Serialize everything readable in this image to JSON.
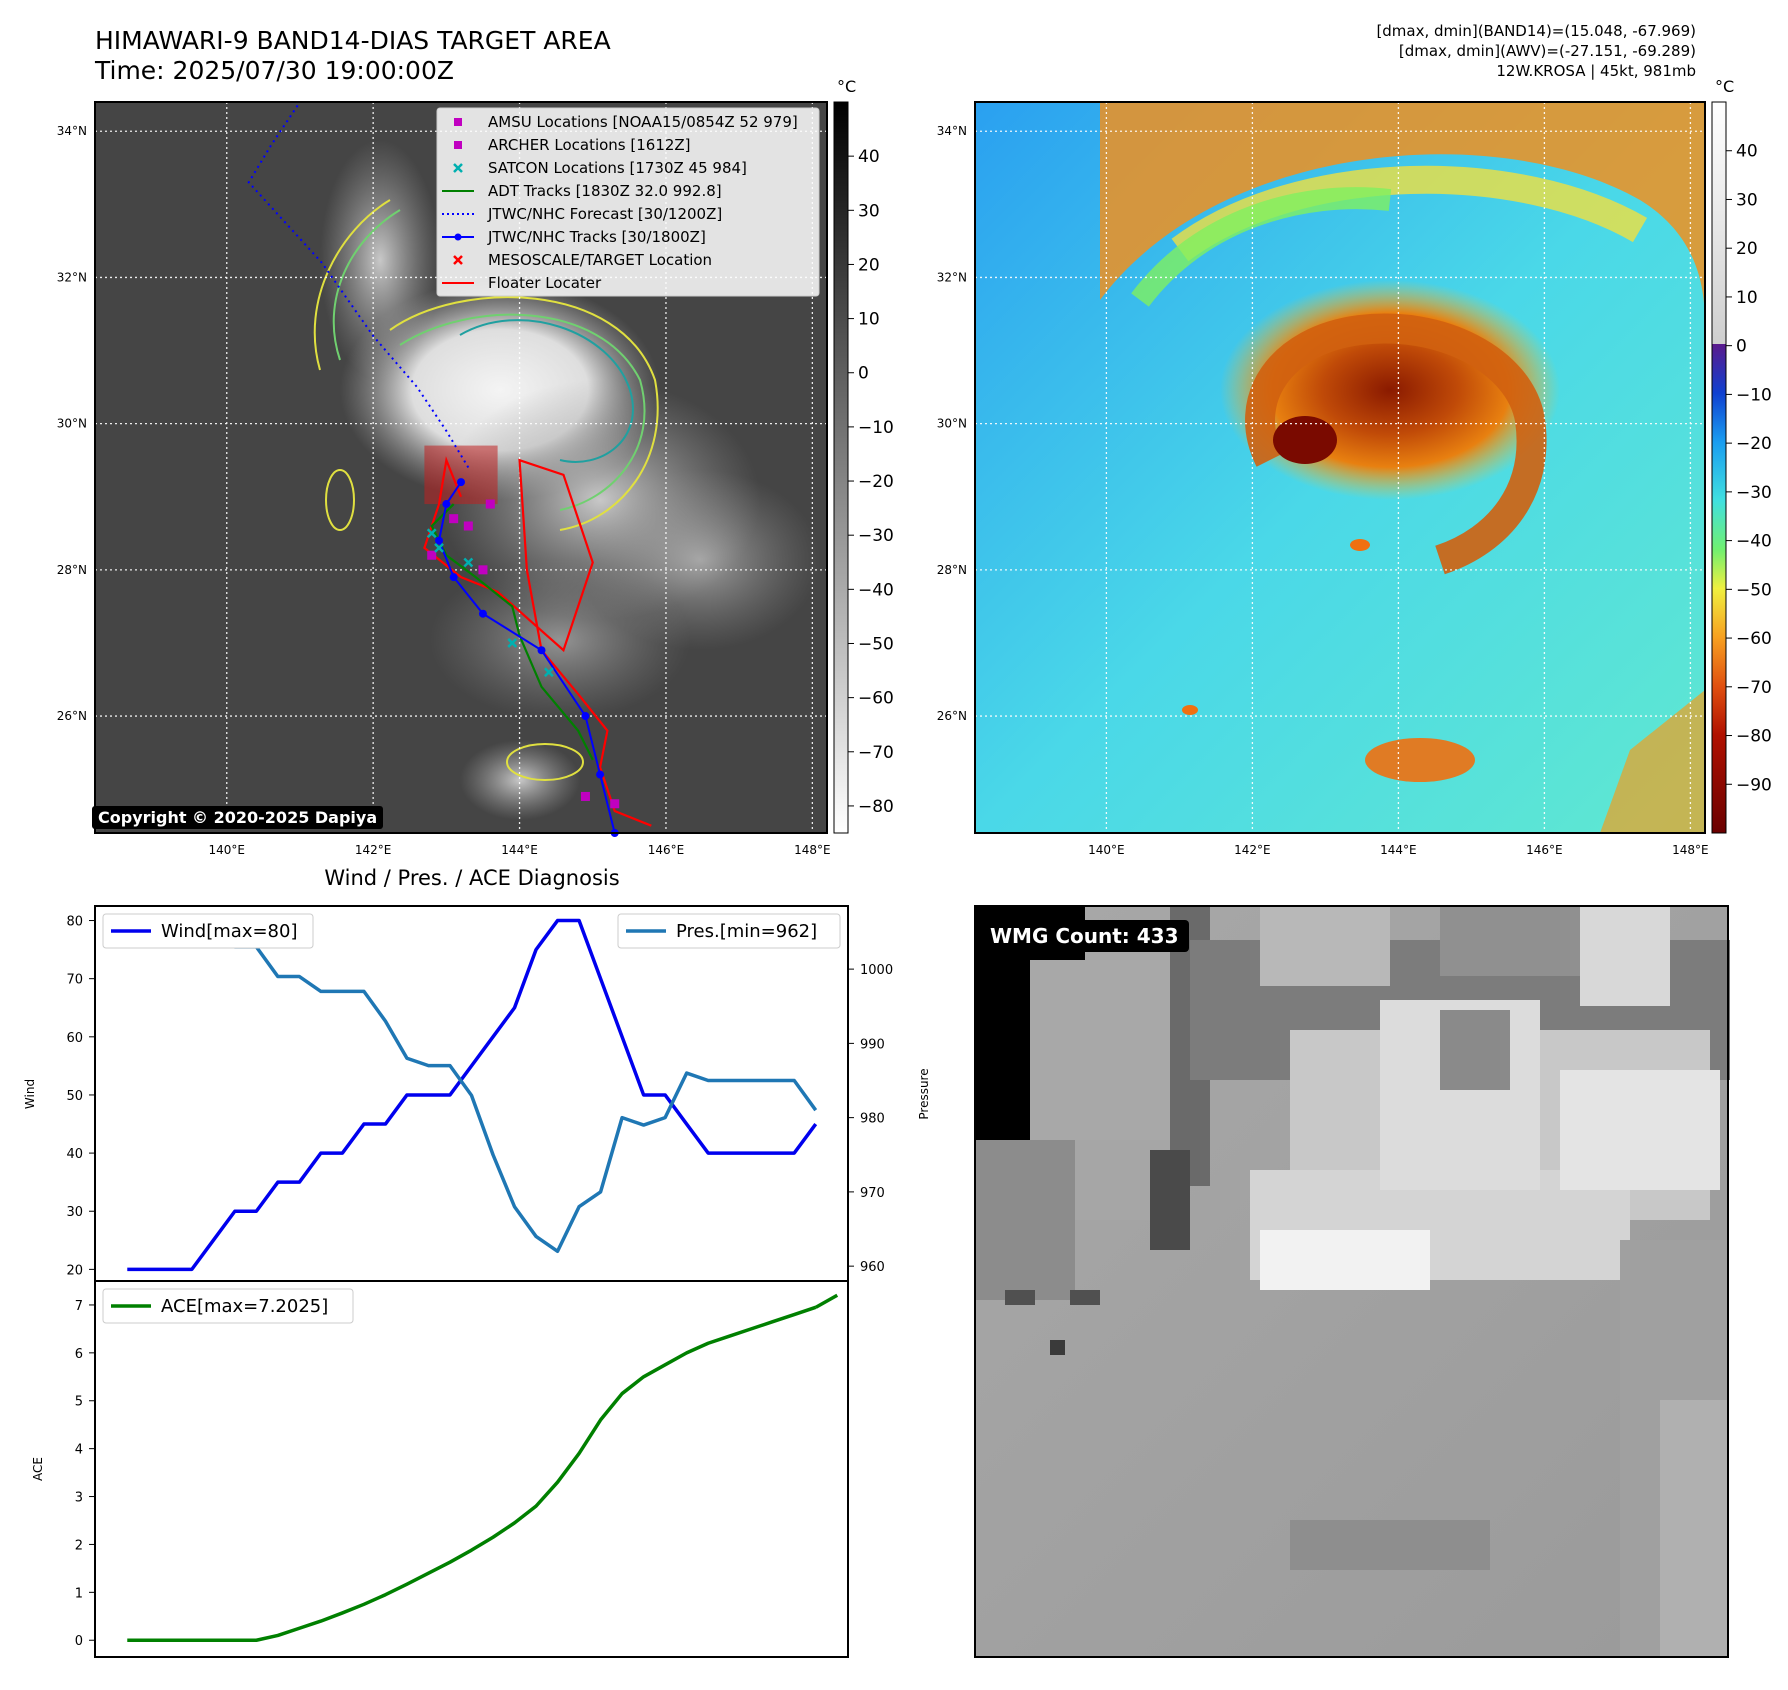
{
  "header": {
    "title_line1": "HIMAWARI-9 BAND14-DIAS TARGET AREA",
    "title_line2": "Time: 2025/07/30 19:00:00Z",
    "info_line1": "[dmax, dmin](BAND14)=(15.048, -67.969)",
    "info_line2": "[dmax, dmin](AWV)=(-27.151, -69.289)",
    "info_line3": "12W.KROSA | 45kt, 981mb"
  },
  "map_axes": {
    "lat_labels": [
      "34°N",
      "32°N",
      "30°N",
      "28°N",
      "26°N"
    ],
    "lat_values": [
      34,
      32,
      30,
      28,
      26
    ],
    "lon_labels": [
      "140°E",
      "142°E",
      "144°E",
      "146°E",
      "148°E"
    ],
    "lon_values": [
      140,
      142,
      144,
      146,
      148
    ],
    "lon_range": [
      138.2,
      148.2
    ],
    "lat_range": [
      24.4,
      34.4
    ]
  },
  "colorbar_left": {
    "unit": "°C",
    "ticks": [
      40,
      30,
      20,
      10,
      0,
      -10,
      -20,
      -30,
      -40,
      -50,
      -60,
      -70,
      -80
    ],
    "range": [
      -85,
      50
    ],
    "tick_labels": [
      "40",
      "30",
      "20",
      "10",
      "0",
      "−10",
      "−20",
      "−30",
      "−40",
      "−50",
      "−60",
      "−70",
      "−80"
    ]
  },
  "colorbar_right": {
    "unit": "°C",
    "ticks": [
      40,
      30,
      20,
      10,
      0,
      -10,
      -20,
      -30,
      -40,
      -50,
      -60,
      -70,
      -80,
      -90
    ],
    "range": [
      -100,
      50
    ],
    "tick_labels": [
      "40",
      "30",
      "20",
      "10",
      "0",
      "−10",
      "−20",
      "−30",
      "−40",
      "−50",
      "−60",
      "−70",
      "−80",
      "−90"
    ]
  },
  "legend": {
    "items": [
      {
        "label": "AMSU Locations [NOAA15/0854Z 52 979]",
        "color": "#c000c0",
        "marker": "square"
      },
      {
        "label": "ARCHER Locations [1612Z]",
        "color": "#c000c0",
        "marker": "square"
      },
      {
        "label": "SATCON Locations [1730Z 45 984]",
        "color": "#00b0b0",
        "marker": "x"
      },
      {
        "label": "ADT Tracks [1830Z 32.0 992.8]",
        "color": "#008000",
        "marker": "line"
      },
      {
        "label": "JTWC/NHC Forecast [30/1200Z]",
        "color": "#0000ff",
        "marker": "dotted"
      },
      {
        "label": "JTWC/NHC Tracks [30/1800Z]",
        "color": "#0000ff",
        "marker": "line-dot"
      },
      {
        "label": "MESOSCALE/TARGET Location",
        "color": "#ff0000",
        "marker": "x"
      },
      {
        "label": "Floater Locater",
        "color": "#ff0000",
        "marker": "line"
      }
    ]
  },
  "tracks": {
    "jtwc_track": [
      [
        145.3,
        24.4
      ],
      [
        145.1,
        25.2
      ],
      [
        144.9,
        26.0
      ],
      [
        144.3,
        26.9
      ],
      [
        143.5,
        27.4
      ],
      [
        143.1,
        27.9
      ],
      [
        142.9,
        28.4
      ],
      [
        143.0,
        28.9
      ],
      [
        143.2,
        29.2
      ]
    ],
    "jtwc_forecast": [
      [
        143.3,
        29.4
      ],
      [
        143.0,
        29.9
      ],
      [
        142.6,
        30.5
      ],
      [
        142.0,
        31.2
      ],
      [
        141.3,
        32.2
      ],
      [
        140.3,
        33.3
      ],
      [
        140.6,
        33.8
      ],
      [
        141.0,
        34.4
      ]
    ],
    "floater": [
      [
        145.8,
        24.5
      ],
      [
        145.3,
        24.7
      ],
      [
        145.1,
        25.3
      ],
      [
        145.2,
        25.8
      ],
      [
        144.8,
        26.3
      ],
      [
        144.3,
        26.9
      ],
      [
        144.1,
        28.0
      ],
      [
        144.0,
        29.5
      ],
      [
        144.6,
        29.3
      ],
      [
        145.0,
        28.1
      ],
      [
        144.6,
        26.9
      ],
      [
        143.7,
        27.7
      ],
      [
        143.2,
        27.9
      ],
      [
        142.7,
        28.3
      ],
      [
        142.9,
        28.9
      ],
      [
        143.0,
        29.5
      ],
      [
        143.2,
        29.0
      ]
    ],
    "adt": [
      [
        145.0,
        25.4
      ],
      [
        144.8,
        25.8
      ],
      [
        144.3,
        26.4
      ],
      [
        144.0,
        27.1
      ],
      [
        143.9,
        27.5
      ],
      [
        143.4,
        27.9
      ],
      [
        143.0,
        28.2
      ],
      [
        142.8,
        28.6
      ],
      [
        143.1,
        28.9
      ]
    ],
    "amsu_points": [
      [
        143.5,
        28.0
      ],
      [
        143.3,
        28.6
      ],
      [
        142.8,
        28.2
      ],
      [
        143.1,
        28.7
      ],
      [
        144.9,
        24.9
      ],
      [
        145.3,
        24.8
      ],
      [
        143.6,
        28.9
      ]
    ],
    "satcon_points": [
      [
        142.9,
        28.3
      ],
      [
        143.3,
        28.1
      ],
      [
        144.4,
        26.6
      ],
      [
        143.9,
        27.0
      ],
      [
        142.8,
        28.5
      ]
    ],
    "target_box": [
      [
        142.7,
        28.9
      ],
      [
        143.7,
        29.7
      ]
    ]
  },
  "copyright": "Copyright © 2020-2025 Dapiya",
  "wmg_count": "WMG Count: 433",
  "chart_data": {
    "type": "line",
    "title": "Wind / Pres. / ACE Diagnosis",
    "top": {
      "ylabel_left": "Wind",
      "ylabel_right": "Pressure",
      "ylim_left": [
        18,
        82.5
      ],
      "ylim_right": [
        958,
        1008.5
      ],
      "yticks_left": [
        20,
        30,
        40,
        50,
        60,
        70,
        80
      ],
      "yticks_right": [
        960,
        970,
        980,
        990,
        1000
      ],
      "series": [
        {
          "name": "Wind[max=80]",
          "color": "#0000ee",
          "axis": "left",
          "x": [
            0,
            1,
            2,
            3,
            4,
            5,
            6,
            7,
            8,
            9,
            10,
            11,
            12,
            13,
            14,
            15,
            16,
            17,
            18,
            19,
            20,
            21,
            22,
            23,
            24,
            25,
            26,
            27,
            28,
            29,
            30,
            31,
            32
          ],
          "values": [
            20,
            20,
            20,
            20,
            25,
            30,
            30,
            35,
            35,
            40,
            40,
            45,
            45,
            50,
            50,
            50,
            55,
            60,
            65,
            75,
            80,
            80,
            70,
            60,
            50,
            50,
            45,
            40,
            40,
            40,
            40,
            40,
            45
          ]
        },
        {
          "name": "Pres.[min=962]",
          "color": "#1f77b4",
          "axis": "right",
          "x": [
            0,
            1,
            2,
            3,
            4,
            5,
            6,
            7,
            8,
            9,
            10,
            11,
            12,
            13,
            14,
            15,
            16,
            17,
            18,
            19,
            20,
            21,
            22,
            23,
            24,
            25,
            26,
            27,
            28,
            29,
            30,
            31,
            32
          ],
          "values": [
            1007,
            1007,
            1007,
            1004,
            1004,
            1003,
            1003,
            999,
            999,
            997,
            997,
            997,
            993,
            988,
            987,
            987,
            983,
            975,
            968,
            964,
            962,
            968,
            970,
            980,
            979,
            980,
            986,
            985,
            985,
            985,
            985,
            985,
            981
          ]
        }
      ]
    },
    "bottom": {
      "ylabel": "ACE",
      "ylim": [
        -0.35,
        7.5
      ],
      "yticks": [
        0,
        1,
        2,
        3,
        4,
        5,
        6,
        7
      ],
      "series": [
        {
          "name": "ACE[max=7.2025]",
          "color": "#008000",
          "x": [
            0,
            1,
            2,
            3,
            4,
            5,
            6,
            7,
            8,
            9,
            10,
            11,
            12,
            13,
            14,
            15,
            16,
            17,
            18,
            19,
            20,
            21,
            22,
            23,
            24,
            25,
            26,
            27,
            28,
            29,
            30,
            31,
            32
          ],
          "values": [
            0,
            0,
            0,
            0,
            0,
            0,
            0,
            0.1,
            0.25,
            0.4,
            0.57,
            0.75,
            0.95,
            1.17,
            1.4,
            1.63,
            1.88,
            2.15,
            2.45,
            2.8,
            3.3,
            3.9,
            4.6,
            5.15,
            5.5,
            5.75,
            6.0,
            6.2,
            6.35,
            6.5,
            6.65,
            6.8,
            6.95
          ]
        }
      ],
      "last_value": 7.2025
    },
    "x_range": [
      -1.5,
      33.5
    ]
  }
}
